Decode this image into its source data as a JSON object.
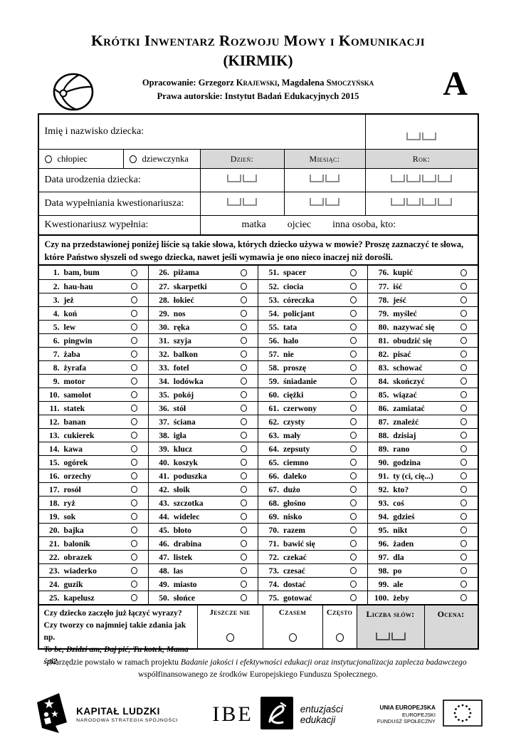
{
  "colors": {
    "ink": "#000000",
    "paper": "#ffffff",
    "header_fill": "#d8d8d8",
    "box_border": "#8c8c8c",
    "dark_box": "#555555"
  },
  "header": {
    "title": "Krótki Inwentarz Rozwoju Mowy i Komunikacji",
    "subtitle": "(KIRMIK)",
    "version_letter": "A",
    "credits_pre": "Opracowanie: Grzegorz",
    "credits_author1_last": "Krajewski",
    "credits_mid": ", Magdalena",
    "credits_author2_last": "Smoczyńska",
    "copyright": "Prawa autorskie: Instytut Badań Edukacyjnych 2015"
  },
  "fields": {
    "name_label": "Imię i nazwisko dziecka:",
    "sex_options": [
      "chłopiec",
      "dziewczynka"
    ],
    "date_headers": [
      "Dzień:",
      "Miesiąc:",
      "Rok:"
    ],
    "birth_date_label": "Data urodzenia dziecka:",
    "fill_date_label": "Data wypełniania kwestionariusza:",
    "filled_by_label": "Kwestionariusz wypełnia:",
    "filled_by_options": [
      "matka",
      "ojciec",
      "inna osoba, kto:"
    ]
  },
  "instruction": "Czy na przedstawionej poniżej liście są takie słowa, których dziecko używa w mowie? Proszę zaznaczyć te słowa, które Państwo słyszeli od swego dziecka, nawet jeśli wymawia je ono nieco inaczej niż dorośli.",
  "word_list": {
    "columns": 4,
    "rows_per_column": 25,
    "items": [
      "bam, bum",
      "hau-hau",
      "jeż",
      "koń",
      "lew",
      "pingwin",
      "żaba",
      "żyrafa",
      "motor",
      "samolot",
      "statek",
      "banan",
      "cukierek",
      "kawa",
      "ogórek",
      "orzechy",
      "rosół",
      "ryż",
      "sok",
      "bajka",
      "balonik",
      "obrazek",
      "wiaderko",
      "guzik",
      "kapelusz",
      "piżama",
      "skarpetki",
      "łokieć",
      "nos",
      "ręka",
      "szyja",
      "balkon",
      "fotel",
      "lodówka",
      "pokój",
      "stół",
      "ściana",
      "igła",
      "klucz",
      "koszyk",
      "poduszka",
      "słoik",
      "szczotka",
      "widelec",
      "błoto",
      "drabina",
      "listek",
      "las",
      "miasto",
      "słońce",
      "spacer",
      "ciocia",
      "córeczka",
      "policjant",
      "tata",
      "halo",
      "nie",
      "proszę",
      "śniadanie",
      "ciężki",
      "czerwony",
      "czysty",
      "mały",
      "zepsuty",
      "ciemno",
      "daleko",
      "dużo",
      "głośno",
      "nisko",
      "razem",
      "bawić się",
      "czekać",
      "czesać",
      "dostać",
      "gotować",
      "kupić",
      "iść",
      "jeść",
      "myśleć",
      "nazywać się",
      "obudzić się",
      "pisać",
      "schować",
      "skończyć",
      "wiązać",
      "zamiatać",
      "znaleźć",
      "dzisiaj",
      "rano",
      "godzina",
      "ty (ci, cię...)",
      "kto?",
      "coś",
      "gdzieś",
      "nikt",
      "żaden",
      "dla",
      "po",
      "ale",
      "żeby"
    ]
  },
  "sentence_question": {
    "line1": "Czy dziecko zaczęło już łączyć wyrazy?",
    "line2": "Czy tworzy co najmniej takie zdania jak np.",
    "line3_italic": "To be, Dzidzi am, Daj pić, Tu kotek, Mama śpi?",
    "options": [
      "Jeszcze nie",
      "Czasem",
      "Często"
    ],
    "word_count_label": "Liczba słów:",
    "score_label": "Ocena:"
  },
  "footer": {
    "project_pre": "Narzędzie powstało w ramach projektu",
    "project_italic": "Badanie jakości i efektywności edukacji oraz instytucjonalizacja zaplecza badawczego",
    "project_post": "współfinansowanego ze środków Europejskiego Funduszu Społecznego.",
    "logos": {
      "kapital_title": "KAPITAŁ LUDZKI",
      "kapital_sub": "NARODOWA STRATEGIA SPÓJNOŚCI",
      "ibe_text": "IBE",
      "ibe_tagline1": "entuzjaści",
      "ibe_tagline2": "edukacji",
      "eu_line1": "UNIA EUROPEJSKA",
      "eu_line2": "EUROPEJSKI",
      "eu_line3": "FUNDUSZ SPOŁECZNY"
    }
  }
}
